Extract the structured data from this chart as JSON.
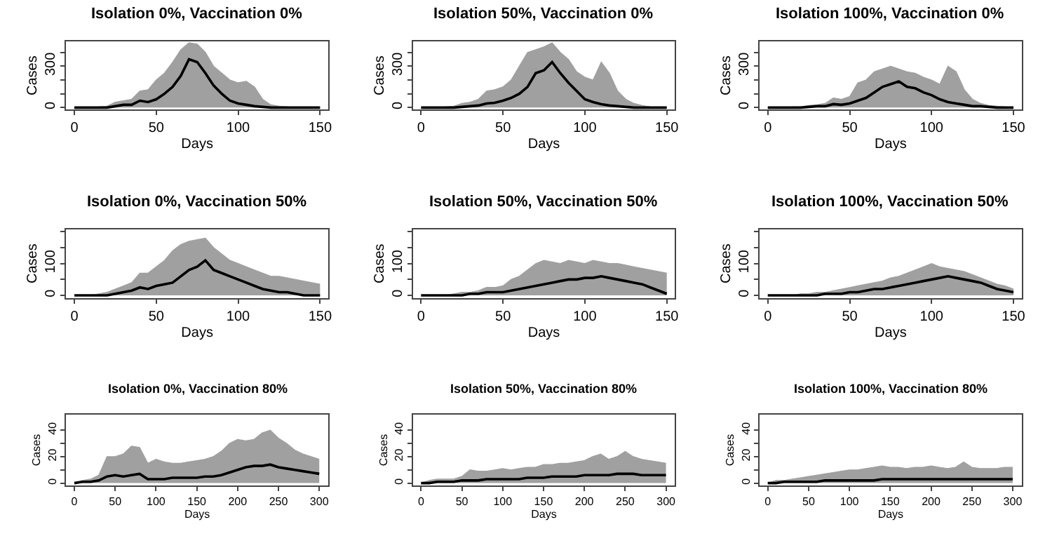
{
  "chart_data": [
    {
      "type": "line",
      "title": "Isolation 0%, Vaccination 0%",
      "xlabel": "Days",
      "ylabel": "Cases",
      "x": [
        0,
        5,
        10,
        15,
        20,
        25,
        30,
        35,
        40,
        45,
        50,
        55,
        60,
        65,
        70,
        75,
        80,
        85,
        90,
        95,
        100,
        105,
        110,
        115,
        120,
        125,
        130,
        135,
        140,
        145,
        150
      ],
      "xlim": [
        -5,
        155
      ],
      "xticks": [
        0,
        50,
        100,
        150
      ],
      "ylim": [
        -15,
        480
      ],
      "yticks": [
        0,
        {
          "value": 100,
          "label": null
        },
        {
          "value": 200,
          "label": null
        },
        300,
        {
          "value": 400,
          "label": null
        }
      ],
      "marker": "none",
      "line_style": "solid",
      "series": [
        {
          "type": "area",
          "color": "#a0a0a0",
          "values": [
            0,
            0,
            0,
            5,
            10,
            40,
            50,
            60,
            120,
            130,
            200,
            250,
            330,
            420,
            470,
            460,
            400,
            300,
            250,
            200,
            180,
            190,
            150,
            60,
            20,
            10,
            5,
            0,
            0,
            0,
            0
          ]
        },
        {
          "color": "#000000",
          "values": [
            0,
            0,
            0,
            0,
            0,
            10,
            20,
            20,
            50,
            40,
            60,
            100,
            150,
            230,
            350,
            330,
            250,
            160,
            100,
            50,
            30,
            20,
            10,
            5,
            0,
            0,
            0,
            0,
            0,
            0,
            0
          ]
        }
      ]
    },
    {
      "type": "line",
      "title": "Isolation 50%, Vaccination 0%",
      "xlabel": "Days",
      "ylabel": "Cases",
      "x": [
        0,
        5,
        10,
        15,
        20,
        25,
        30,
        35,
        40,
        45,
        50,
        55,
        60,
        65,
        70,
        75,
        80,
        85,
        90,
        95,
        100,
        105,
        110,
        115,
        120,
        125,
        130,
        135,
        140,
        145,
        150
      ],
      "xlim": [
        -5,
        155
      ],
      "xticks": [
        0,
        50,
        100,
        150
      ],
      "ylim": [
        -15,
        480
      ],
      "yticks": [
        0,
        {
          "value": 100,
          "label": null
        },
        {
          "value": 200,
          "label": null
        },
        300,
        {
          "value": 400,
          "label": null
        }
      ],
      "marker": "none",
      "line_style": "solid",
      "series": [
        {
          "type": "area",
          "color": "#a0a0a0",
          "values": [
            0,
            0,
            0,
            5,
            10,
            30,
            40,
            60,
            120,
            130,
            150,
            200,
            300,
            400,
            420,
            440,
            470,
            400,
            350,
            260,
            220,
            200,
            330,
            250,
            120,
            60,
            30,
            15,
            5,
            0,
            0
          ]
        },
        {
          "color": "#000000",
          "values": [
            0,
            0,
            0,
            0,
            0,
            5,
            10,
            15,
            30,
            35,
            50,
            70,
            100,
            150,
            250,
            270,
            330,
            250,
            180,
            120,
            60,
            40,
            25,
            15,
            10,
            5,
            0,
            0,
            0,
            0,
            0
          ]
        }
      ]
    },
    {
      "type": "line",
      "title": "Isolation 100%, Vaccination 0%",
      "xlabel": "Days",
      "ylabel": "Cases",
      "x": [
        0,
        5,
        10,
        15,
        20,
        25,
        30,
        35,
        40,
        45,
        50,
        55,
        60,
        65,
        70,
        75,
        80,
        85,
        90,
        95,
        100,
        105,
        110,
        115,
        120,
        125,
        130,
        135,
        140,
        145,
        150
      ],
      "xlim": [
        -5,
        155
      ],
      "xticks": [
        0,
        50,
        100,
        150
      ],
      "ylim": [
        -15,
        480
      ],
      "yticks": [
        0,
        {
          "value": 100,
          "label": null
        },
        {
          "value": 200,
          "label": null
        },
        300,
        {
          "value": 400,
          "label": null
        }
      ],
      "marker": "none",
      "line_style": "solid",
      "series": [
        {
          "type": "area",
          "color": "#a0a0a0",
          "values": [
            0,
            0,
            0,
            5,
            5,
            15,
            20,
            30,
            70,
            60,
            80,
            180,
            200,
            260,
            280,
            300,
            280,
            260,
            250,
            220,
            200,
            170,
            300,
            260,
            130,
            60,
            30,
            15,
            10,
            5,
            0
          ]
        },
        {
          "color": "#000000",
          "values": [
            0,
            0,
            0,
            0,
            0,
            5,
            10,
            10,
            25,
            20,
            30,
            50,
            70,
            110,
            150,
            170,
            190,
            150,
            140,
            110,
            90,
            60,
            40,
            30,
            20,
            10,
            10,
            5,
            0,
            0,
            0
          ]
        }
      ]
    },
    {
      "type": "line",
      "title": "Isolation 0%, Vaccination 50%",
      "xlabel": "Days",
      "ylabel": "Cases",
      "x": [
        0,
        5,
        10,
        15,
        20,
        25,
        30,
        35,
        40,
        45,
        50,
        55,
        60,
        65,
        70,
        75,
        80,
        85,
        90,
        95,
        100,
        105,
        110,
        115,
        120,
        125,
        130,
        135,
        140,
        145,
        150
      ],
      "xlim": [
        -5,
        155
      ],
      "xticks": [
        0,
        50,
        100,
        150
      ],
      "ylim": [
        -8,
        208
      ],
      "yticks": [
        0,
        {
          "value": 50,
          "label": null
        },
        100,
        {
          "value": 150,
          "label": null
        },
        {
          "value": 200,
          "label": null
        }
      ],
      "marker": "none",
      "line_style": "solid",
      "series": [
        {
          "type": "area",
          "color": "#a0a0a0",
          "values": [
            0,
            0,
            0,
            5,
            10,
            20,
            30,
            40,
            70,
            70,
            90,
            110,
            140,
            160,
            170,
            175,
            180,
            150,
            130,
            110,
            100,
            90,
            80,
            70,
            60,
            60,
            55,
            50,
            45,
            40,
            35
          ]
        },
        {
          "color": "#000000",
          "values": [
            0,
            0,
            0,
            0,
            0,
            5,
            10,
            15,
            25,
            20,
            30,
            35,
            40,
            60,
            80,
            90,
            110,
            80,
            70,
            60,
            50,
            40,
            30,
            20,
            15,
            10,
            10,
            5,
            0,
            0,
            0
          ]
        }
      ]
    },
    {
      "type": "line",
      "title": "Isolation 50%, Vaccination 50%",
      "xlabel": "Days",
      "ylabel": "Cases",
      "x": [
        0,
        5,
        10,
        15,
        20,
        25,
        30,
        35,
        40,
        45,
        50,
        55,
        60,
        65,
        70,
        75,
        80,
        85,
        90,
        95,
        100,
        105,
        110,
        115,
        120,
        125,
        130,
        135,
        140,
        145,
        150
      ],
      "xlim": [
        -5,
        155
      ],
      "xticks": [
        0,
        50,
        100,
        150
      ],
      "ylim": [
        -8,
        208
      ],
      "yticks": [
        0,
        {
          "value": 50,
          "label": null
        },
        100,
        {
          "value": 150,
          "label": null
        },
        {
          "value": 200,
          "label": null
        }
      ],
      "marker": "none",
      "line_style": "solid",
      "series": [
        {
          "type": "area",
          "color": "#a0a0a0",
          "values": [
            0,
            0,
            0,
            0,
            5,
            10,
            10,
            15,
            25,
            25,
            30,
            50,
            60,
            80,
            100,
            110,
            105,
            100,
            110,
            105,
            100,
            110,
            105,
            100,
            100,
            95,
            90,
            85,
            80,
            75,
            70
          ]
        },
        {
          "color": "#000000",
          "values": [
            0,
            0,
            0,
            0,
            0,
            0,
            5,
            5,
            10,
            10,
            10,
            15,
            20,
            25,
            30,
            35,
            40,
            45,
            50,
            50,
            55,
            55,
            60,
            55,
            50,
            45,
            40,
            35,
            25,
            15,
            5
          ]
        }
      ]
    },
    {
      "type": "line",
      "title": "Isolation 100%, Vaccination 50%",
      "xlabel": "Days",
      "ylabel": "Cases",
      "x": [
        0,
        5,
        10,
        15,
        20,
        25,
        30,
        35,
        40,
        45,
        50,
        55,
        60,
        65,
        70,
        75,
        80,
        85,
        90,
        95,
        100,
        105,
        110,
        115,
        120,
        125,
        130,
        135,
        140,
        145,
        150
      ],
      "xlim": [
        -5,
        155
      ],
      "xticks": [
        0,
        50,
        100,
        150
      ],
      "ylim": [
        -8,
        208
      ],
      "yticks": [
        0,
        {
          "value": 50,
          "label": null
        },
        100,
        {
          "value": 150,
          "label": null
        },
        {
          "value": 200,
          "label": null
        }
      ],
      "marker": "none",
      "line_style": "solid",
      "series": [
        {
          "type": "area",
          "color": "#a0a0a0",
          "values": [
            0,
            0,
            0,
            0,
            5,
            5,
            10,
            10,
            15,
            20,
            25,
            30,
            35,
            40,
            45,
            55,
            60,
            70,
            80,
            90,
            100,
            90,
            85,
            80,
            75,
            65,
            55,
            45,
            35,
            30,
            20
          ]
        },
        {
          "color": "#000000",
          "values": [
            0,
            0,
            0,
            0,
            0,
            0,
            0,
            5,
            5,
            5,
            10,
            10,
            15,
            20,
            20,
            25,
            30,
            35,
            40,
            45,
            50,
            55,
            60,
            55,
            50,
            45,
            40,
            30,
            20,
            15,
            10
          ]
        }
      ]
    },
    {
      "type": "line",
      "title": "Isolation 0%, Vaccination 80%",
      "xlabel": "Days",
      "ylabel": "Cases",
      "x": [
        0,
        10,
        20,
        30,
        40,
        50,
        60,
        70,
        80,
        90,
        100,
        110,
        120,
        130,
        140,
        150,
        160,
        170,
        180,
        190,
        200,
        210,
        220,
        230,
        240,
        250,
        260,
        270,
        280,
        290,
        300
      ],
      "xlim": [
        -10,
        311
      ],
      "xticks": [
        0,
        50,
        100,
        150,
        200,
        250,
        300
      ],
      "ylim": [
        -2,
        52
      ],
      "yticks": [
        0,
        {
          "value": 10,
          "label": null
        },
        20,
        {
          "value": 30,
          "label": null
        },
        40
      ],
      "marker": "none",
      "line_style": "solid",
      "series": [
        {
          "type": "area",
          "color": "#a0a0a0",
          "values": [
            0,
            2,
            3,
            6,
            20,
            20,
            22,
            28,
            27,
            15,
            18,
            16,
            15,
            15,
            16,
            17,
            18,
            20,
            24,
            30,
            33,
            32,
            33,
            38,
            40,
            34,
            30,
            25,
            22,
            20,
            18
          ]
        },
        {
          "color": "#000000",
          "values": [
            0,
            1,
            1,
            2,
            5,
            6,
            5,
            6,
            7,
            3,
            3,
            3,
            4,
            4,
            4,
            4,
            5,
            5,
            6,
            8,
            10,
            12,
            13,
            13,
            14,
            12,
            11,
            10,
            9,
            8,
            7
          ]
        }
      ]
    },
    {
      "type": "line",
      "title": "Isolation 50%, Vaccination 80%",
      "xlabel": "Days",
      "ylabel": "Cases",
      "x": [
        0,
        10,
        20,
        30,
        40,
        50,
        60,
        70,
        80,
        90,
        100,
        110,
        120,
        130,
        140,
        150,
        160,
        170,
        180,
        190,
        200,
        210,
        220,
        230,
        240,
        250,
        260,
        270,
        280,
        290,
        300
      ],
      "xlim": [
        -10,
        311
      ],
      "xticks": [
        0,
        50,
        100,
        150,
        200,
        250,
        300
      ],
      "ylim": [
        -2,
        52
      ],
      "yticks": [
        0,
        {
          "value": 10,
          "label": null
        },
        20,
        {
          "value": 30,
          "label": null
        },
        40
      ],
      "marker": "none",
      "line_style": "solid",
      "series": [
        {
          "type": "area",
          "color": "#a0a0a0",
          "values": [
            0,
            2,
            3,
            3,
            3,
            5,
            10,
            9,
            9,
            10,
            11,
            10,
            11,
            12,
            12,
            14,
            14,
            15,
            15,
            16,
            17,
            20,
            22,
            18,
            20,
            24,
            20,
            18,
            17,
            16,
            15
          ]
        },
        {
          "color": "#000000",
          "values": [
            0,
            0,
            1,
            1,
            1,
            2,
            2,
            2,
            3,
            3,
            3,
            3,
            3,
            4,
            4,
            4,
            5,
            5,
            5,
            5,
            6,
            6,
            6,
            6,
            7,
            7,
            7,
            6,
            6,
            6,
            6
          ]
        }
      ]
    },
    {
      "type": "line",
      "title": "Isolation 100%, Vaccination 80%",
      "xlabel": "Days",
      "ylabel": "Cases",
      "x": [
        0,
        10,
        20,
        30,
        40,
        50,
        60,
        70,
        80,
        90,
        100,
        110,
        120,
        130,
        140,
        150,
        160,
        170,
        180,
        190,
        200,
        210,
        220,
        230,
        240,
        250,
        260,
        270,
        280,
        290,
        300
      ],
      "xlim": [
        -10,
        311
      ],
      "xticks": [
        0,
        50,
        100,
        150,
        200,
        250,
        300
      ],
      "ylim": [
        -2,
        52
      ],
      "yticks": [
        0,
        {
          "value": 10,
          "label": null
        },
        20,
        {
          "value": 30,
          "label": null
        },
        40
      ],
      "marker": "none",
      "line_style": "solid",
      "series": [
        {
          "type": "area",
          "color": "#a0a0a0",
          "values": [
            0,
            2,
            2,
            3,
            4,
            5,
            6,
            7,
            8,
            9,
            10,
            10,
            11,
            12,
            13,
            12,
            12,
            11,
            12,
            12,
            13,
            12,
            11,
            12,
            16,
            12,
            11,
            11,
            11,
            12,
            12
          ]
        },
        {
          "color": "#000000",
          "values": [
            0,
            0,
            1,
            1,
            1,
            1,
            1,
            2,
            2,
            2,
            2,
            2,
            2,
            2,
            3,
            3,
            3,
            3,
            3,
            3,
            3,
            3,
            3,
            3,
            3,
            3,
            3,
            3,
            3,
            3,
            3
          ]
        }
      ]
    }
  ]
}
